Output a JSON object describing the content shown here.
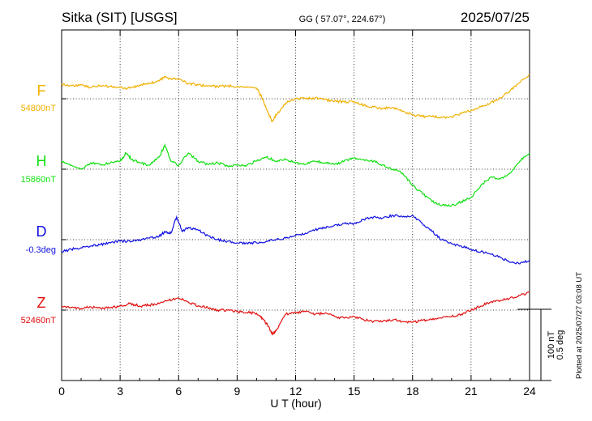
{
  "chart_data": {
    "type": "line",
    "title": "Sitka (SIT)  [USGS]",
    "subtitle": "GG ( 57.07°, 224.67°)",
    "date": "2025/07/25",
    "xlabel": "U T (hour)",
    "xlim": [
      0,
      24
    ],
    "xticks": [
      0,
      3,
      6,
      9,
      12,
      15,
      18,
      21,
      24
    ],
    "tick_labels": [
      "0",
      "3",
      "6",
      "9",
      "12",
      "15",
      "18",
      "21",
      "24"
    ],
    "scale_label_nT": "100 nT",
    "scale_label_deg": "0.5 deg",
    "plotted_note": "Plotted at 2025/07/27 03:08 UT",
    "series": [
      {
        "name": "F",
        "baseline_label": "54800nT",
        "color": "#f0b000",
        "x": [
          0,
          0.5,
          1,
          1.5,
          2,
          2.5,
          3,
          3.5,
          4,
          4.5,
          5,
          5.3,
          5.6,
          6,
          6.5,
          7,
          7.5,
          8,
          8.5,
          9,
          9.5,
          10,
          10.3,
          10.6,
          10.8,
          11,
          11.5,
          12,
          12.5,
          13,
          13.5,
          14,
          14.5,
          15,
          15.5,
          16,
          16.5,
          17,
          17.5,
          18,
          18.5,
          19,
          19.5,
          20,
          20.5,
          21,
          21.5,
          22,
          22.5,
          23,
          23.5,
          24
        ],
        "y": [
          18,
          16,
          17,
          14,
          16,
          15,
          14,
          13,
          17,
          19,
          22,
          27,
          25,
          24,
          19,
          17,
          16,
          15,
          16,
          15,
          14,
          13,
          0,
          -18,
          -28,
          -20,
          -5,
          0,
          0,
          1,
          -1,
          -3,
          -4,
          -3,
          -8,
          -10,
          -12,
          -11,
          -15,
          -20,
          -22,
          -22,
          -23,
          -22,
          -18,
          -14,
          -10,
          -5,
          1,
          10,
          20,
          30
        ]
      },
      {
        "name": "H",
        "baseline_label": "15860nT",
        "color": "#10e010",
        "x": [
          0,
          0.5,
          1,
          1.5,
          2,
          2.5,
          3,
          3.3,
          3.6,
          4,
          4.5,
          5,
          5.3,
          5.6,
          6,
          6.5,
          7,
          7.5,
          8,
          8.5,
          9,
          9.5,
          10,
          10.5,
          11,
          11.5,
          12,
          12.5,
          13,
          13.5,
          14,
          14.5,
          15,
          15.5,
          16,
          16.5,
          17,
          17.5,
          18,
          18.5,
          19,
          19.5,
          20,
          20.5,
          21,
          21.5,
          22,
          22.5,
          23,
          23.5,
          24
        ],
        "y": [
          10,
          5,
          0,
          8,
          5,
          8,
          10,
          20,
          12,
          8,
          5,
          15,
          30,
          10,
          5,
          20,
          10,
          6,
          8,
          4,
          5,
          5,
          10,
          15,
          10,
          12,
          8,
          6,
          10,
          8,
          6,
          10,
          14,
          12,
          10,
          5,
          0,
          -5,
          -20,
          -30,
          -40,
          -45,
          -45,
          -40,
          -35,
          -20,
          -10,
          -12,
          -5,
          10,
          20
        ]
      },
      {
        "name": "D",
        "baseline_label": "-0.3deg",
        "color": "#1010e0",
        "x": [
          0,
          0.5,
          1,
          1.5,
          2,
          2.5,
          3,
          3.5,
          4,
          4.5,
          5,
          5.3,
          5.6,
          5.9,
          6.2,
          6.5,
          7,
          7.5,
          8,
          8.5,
          9,
          9.5,
          10,
          10.5,
          11,
          11.5,
          12,
          12.5,
          13,
          13.5,
          14,
          14.5,
          15,
          15.5,
          16,
          16.5,
          17,
          17.5,
          18,
          18.5,
          19,
          19.5,
          20,
          20.5,
          21,
          21.5,
          22,
          22.5,
          23,
          23.5,
          24
        ],
        "y": [
          -15,
          -12,
          -10,
          -8,
          -6,
          -4,
          -2,
          -2,
          0,
          2,
          4,
          10,
          8,
          28,
          10,
          15,
          12,
          5,
          0,
          -2,
          -4,
          -4,
          -4,
          -2,
          0,
          2,
          5,
          8,
          12,
          15,
          18,
          20,
          20,
          25,
          28,
          27,
          30,
          28,
          30,
          20,
          10,
          0,
          -5,
          -8,
          -12,
          -15,
          -18,
          -22,
          -28,
          -30,
          -25
        ]
      },
      {
        "name": "Z",
        "baseline_label": "52460nT",
        "color": "#e01010",
        "x": [
          0,
          0.5,
          1,
          1.5,
          2,
          2.5,
          3,
          3.5,
          4,
          4.5,
          5,
          5.5,
          6,
          6.5,
          7,
          7.5,
          8,
          8.5,
          9,
          9.5,
          10,
          10.3,
          10.6,
          10.8,
          11,
          11.5,
          12,
          12.5,
          13,
          13.5,
          14,
          14.5,
          15,
          15.5,
          16,
          16.5,
          17,
          17.5,
          18,
          18.5,
          19,
          19.5,
          20,
          20.5,
          21,
          21.5,
          22,
          22.5,
          23,
          23.5,
          24
        ],
        "y": [
          5,
          3,
          2,
          4,
          2,
          3,
          5,
          8,
          5,
          6,
          8,
          12,
          15,
          10,
          5,
          3,
          0,
          0,
          -2,
          -3,
          -4,
          -10,
          -20,
          -30,
          -25,
          -5,
          -3,
          -2,
          -5,
          -4,
          -8,
          -10,
          -8,
          -12,
          -14,
          -13,
          -12,
          -14,
          -15,
          -13,
          -12,
          -10,
          -8,
          -5,
          0,
          5,
          10,
          12,
          15,
          18,
          22
        ]
      }
    ]
  }
}
